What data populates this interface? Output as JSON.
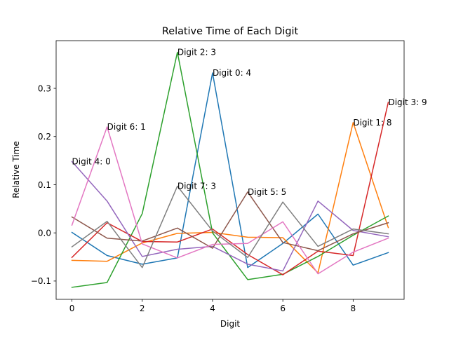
{
  "chart_data": {
    "type": "line",
    "title": "Relative Time of Each Digit",
    "xlabel": "Digit",
    "ylabel": "Relative Time",
    "xlim": [
      -0.45,
      9.45
    ],
    "ylim": [
      -0.138,
      0.399
    ],
    "xticks": [
      0,
      2,
      4,
      6,
      8
    ],
    "yticks": [
      -0.1,
      0.0,
      0.1,
      0.2,
      0.3
    ],
    "ytick_labels": [
      "−0.1",
      "0.0",
      "0.1",
      "0.2",
      "0.3"
    ],
    "xtick_labels": [
      "0",
      "2",
      "4",
      "6",
      "8"
    ],
    "grid": false,
    "legend": "none",
    "x": [
      0,
      1,
      2,
      3,
      4,
      5,
      6,
      7,
      8,
      9
    ],
    "series": [
      {
        "color": "#1f77b4",
        "values": [
          0.001,
          -0.047,
          -0.065,
          -0.052,
          0.332,
          -0.072,
          -0.022,
          0.039,
          -0.067,
          -0.041
        ]
      },
      {
        "color": "#ff7f0e",
        "values": [
          -0.057,
          -0.059,
          -0.021,
          -0.001,
          0.001,
          -0.009,
          -0.01,
          -0.083,
          0.229,
          0.011
        ]
      },
      {
        "color": "#2ca02c",
        "values": [
          -0.113,
          -0.103,
          0.04,
          0.375,
          0.0,
          -0.097,
          -0.086,
          -0.049,
          -0.005,
          0.035
        ]
      },
      {
        "color": "#d62728",
        "values": [
          -0.051,
          0.021,
          -0.018,
          -0.019,
          0.008,
          -0.045,
          -0.087,
          -0.038,
          -0.047,
          0.271
        ]
      },
      {
        "color": "#9467bd",
        "values": [
          0.148,
          0.066,
          -0.049,
          -0.034,
          -0.028,
          -0.065,
          -0.079,
          0.066,
          0.005,
          -0.008
        ]
      },
      {
        "color": "#8c564b",
        "values": [
          0.033,
          -0.011,
          -0.017,
          0.01,
          -0.032,
          0.085,
          -0.02,
          -0.037,
          -0.002,
          0.021
        ]
      },
      {
        "color": "#e377c2",
        "values": [
          0.016,
          0.22,
          -0.023,
          -0.052,
          -0.024,
          -0.022,
          0.023,
          -0.085,
          -0.04,
          -0.011
        ]
      },
      {
        "color": "#7f7f7f",
        "values": [
          -0.029,
          0.024,
          -0.072,
          0.097,
          0.004,
          -0.051,
          0.064,
          -0.028,
          0.008,
          -0.002
        ]
      }
    ],
    "annotations": [
      {
        "text": "Digit 4: 0",
        "x": 0,
        "y": 0.148
      },
      {
        "text": "Digit 6: 1",
        "x": 1,
        "y": 0.22
      },
      {
        "text": "Digit 2: 3",
        "x": 3,
        "y": 0.375
      },
      {
        "text": "Digit 7: 3",
        "x": 3,
        "y": 0.097
      },
      {
        "text": "Digit 0: 4",
        "x": 4,
        "y": 0.332
      },
      {
        "text": "Digit 5: 5",
        "x": 5,
        "y": 0.085
      },
      {
        "text": "Digit 1: 8",
        "x": 8,
        "y": 0.229
      },
      {
        "text": "Digit 3: 9",
        "x": 9,
        "y": 0.271
      }
    ]
  }
}
